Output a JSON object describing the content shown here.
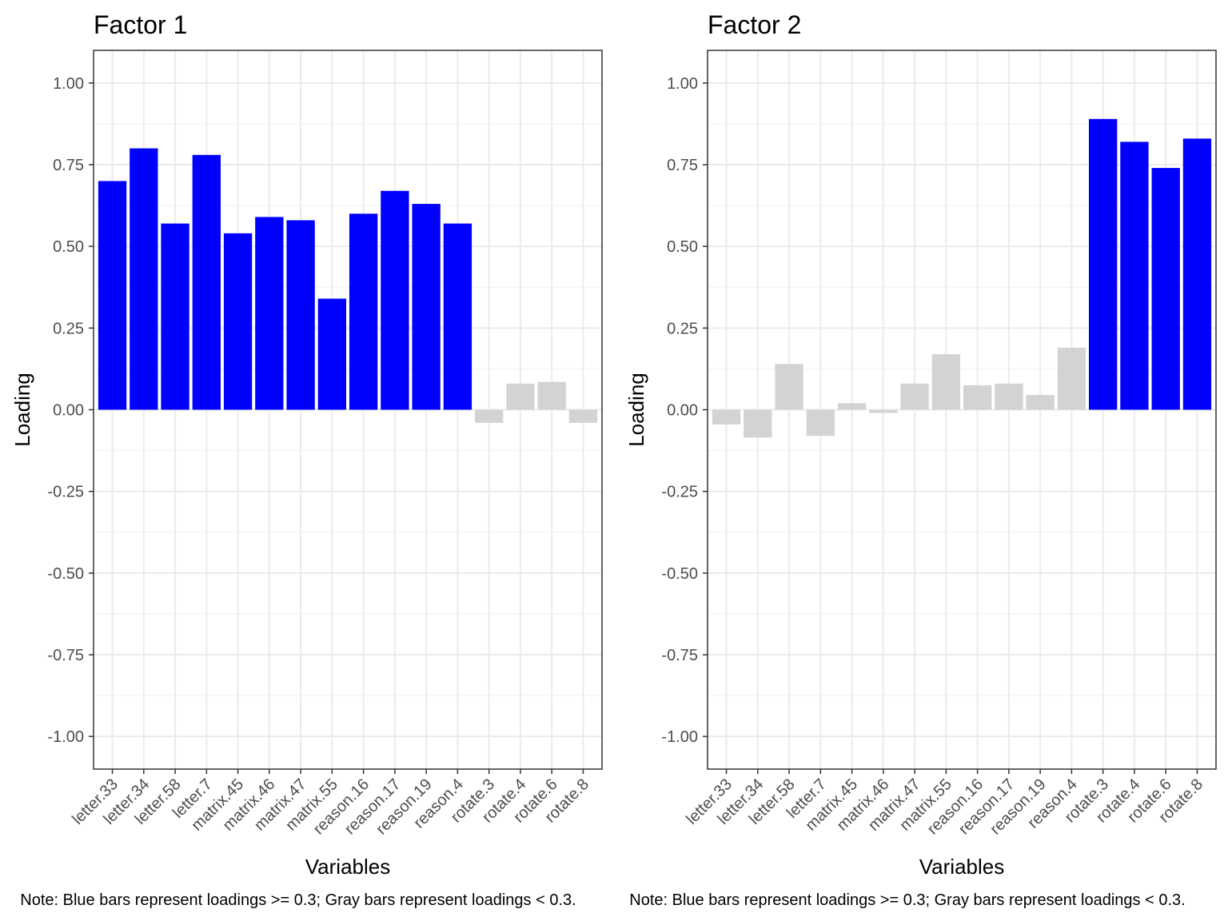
{
  "chart_data": [
    {
      "type": "bar",
      "title": "Factor 1",
      "xlabel": "Variables",
      "ylabel": "Loading",
      "ylim": [
        -1.1,
        1.1
      ],
      "yticks": [
        1.0,
        0.75,
        0.5,
        0.25,
        0.0,
        -0.25,
        -0.5,
        -0.75,
        -1.0
      ],
      "ytick_labels": [
        "1.00",
        "0.75",
        "0.50",
        "0.25",
        "0.00",
        "-0.25",
        "-0.50",
        "-0.75",
        "-1.00"
      ],
      "grid": true,
      "categories": [
        "letter.33",
        "letter.34",
        "letter.58",
        "letter.7",
        "matrix.45",
        "matrix.46",
        "matrix.47",
        "matrix.55",
        "reason.16",
        "reason.17",
        "reason.19",
        "reason.4",
        "rotate.3",
        "rotate.4",
        "rotate.6",
        "rotate.8"
      ],
      "values": [
        0.7,
        0.8,
        0.57,
        0.78,
        0.54,
        0.59,
        0.58,
        0.34,
        0.6,
        0.67,
        0.63,
        0.57,
        -0.04,
        0.08,
        0.085,
        -0.04
      ],
      "threshold": 0.3,
      "colors": {
        "above": "#0000ff",
        "below": "#d3d3d3"
      },
      "caption": "Note: Blue bars represent loadings >= 0.3; Gray bars represent loadings < 0.3."
    },
    {
      "type": "bar",
      "title": "Factor 2",
      "xlabel": "Variables",
      "ylabel": "Loading",
      "ylim": [
        -1.1,
        1.1
      ],
      "yticks": [
        1.0,
        0.75,
        0.5,
        0.25,
        0.0,
        -0.25,
        -0.5,
        -0.75,
        -1.0
      ],
      "ytick_labels": [
        "1.00",
        "0.75",
        "0.50",
        "0.25",
        "0.00",
        "-0.25",
        "-0.50",
        "-0.75",
        "-1.00"
      ],
      "grid": true,
      "categories": [
        "letter.33",
        "letter.34",
        "letter.58",
        "letter.7",
        "matrix.45",
        "matrix.46",
        "matrix.47",
        "matrix.55",
        "reason.16",
        "reason.17",
        "reason.19",
        "reason.4",
        "rotate.3",
        "rotate.4",
        "rotate.6",
        "rotate.8"
      ],
      "values": [
        -0.045,
        -0.085,
        0.14,
        -0.08,
        0.02,
        -0.01,
        0.08,
        0.17,
        0.075,
        0.08,
        0.045,
        0.19,
        0.89,
        0.82,
        0.74,
        0.83
      ],
      "threshold": 0.3,
      "colors": {
        "above": "#0000ff",
        "below": "#d3d3d3"
      },
      "caption": "Note: Blue bars represent loadings >= 0.3; Gray bars represent loadings < 0.3."
    }
  ]
}
